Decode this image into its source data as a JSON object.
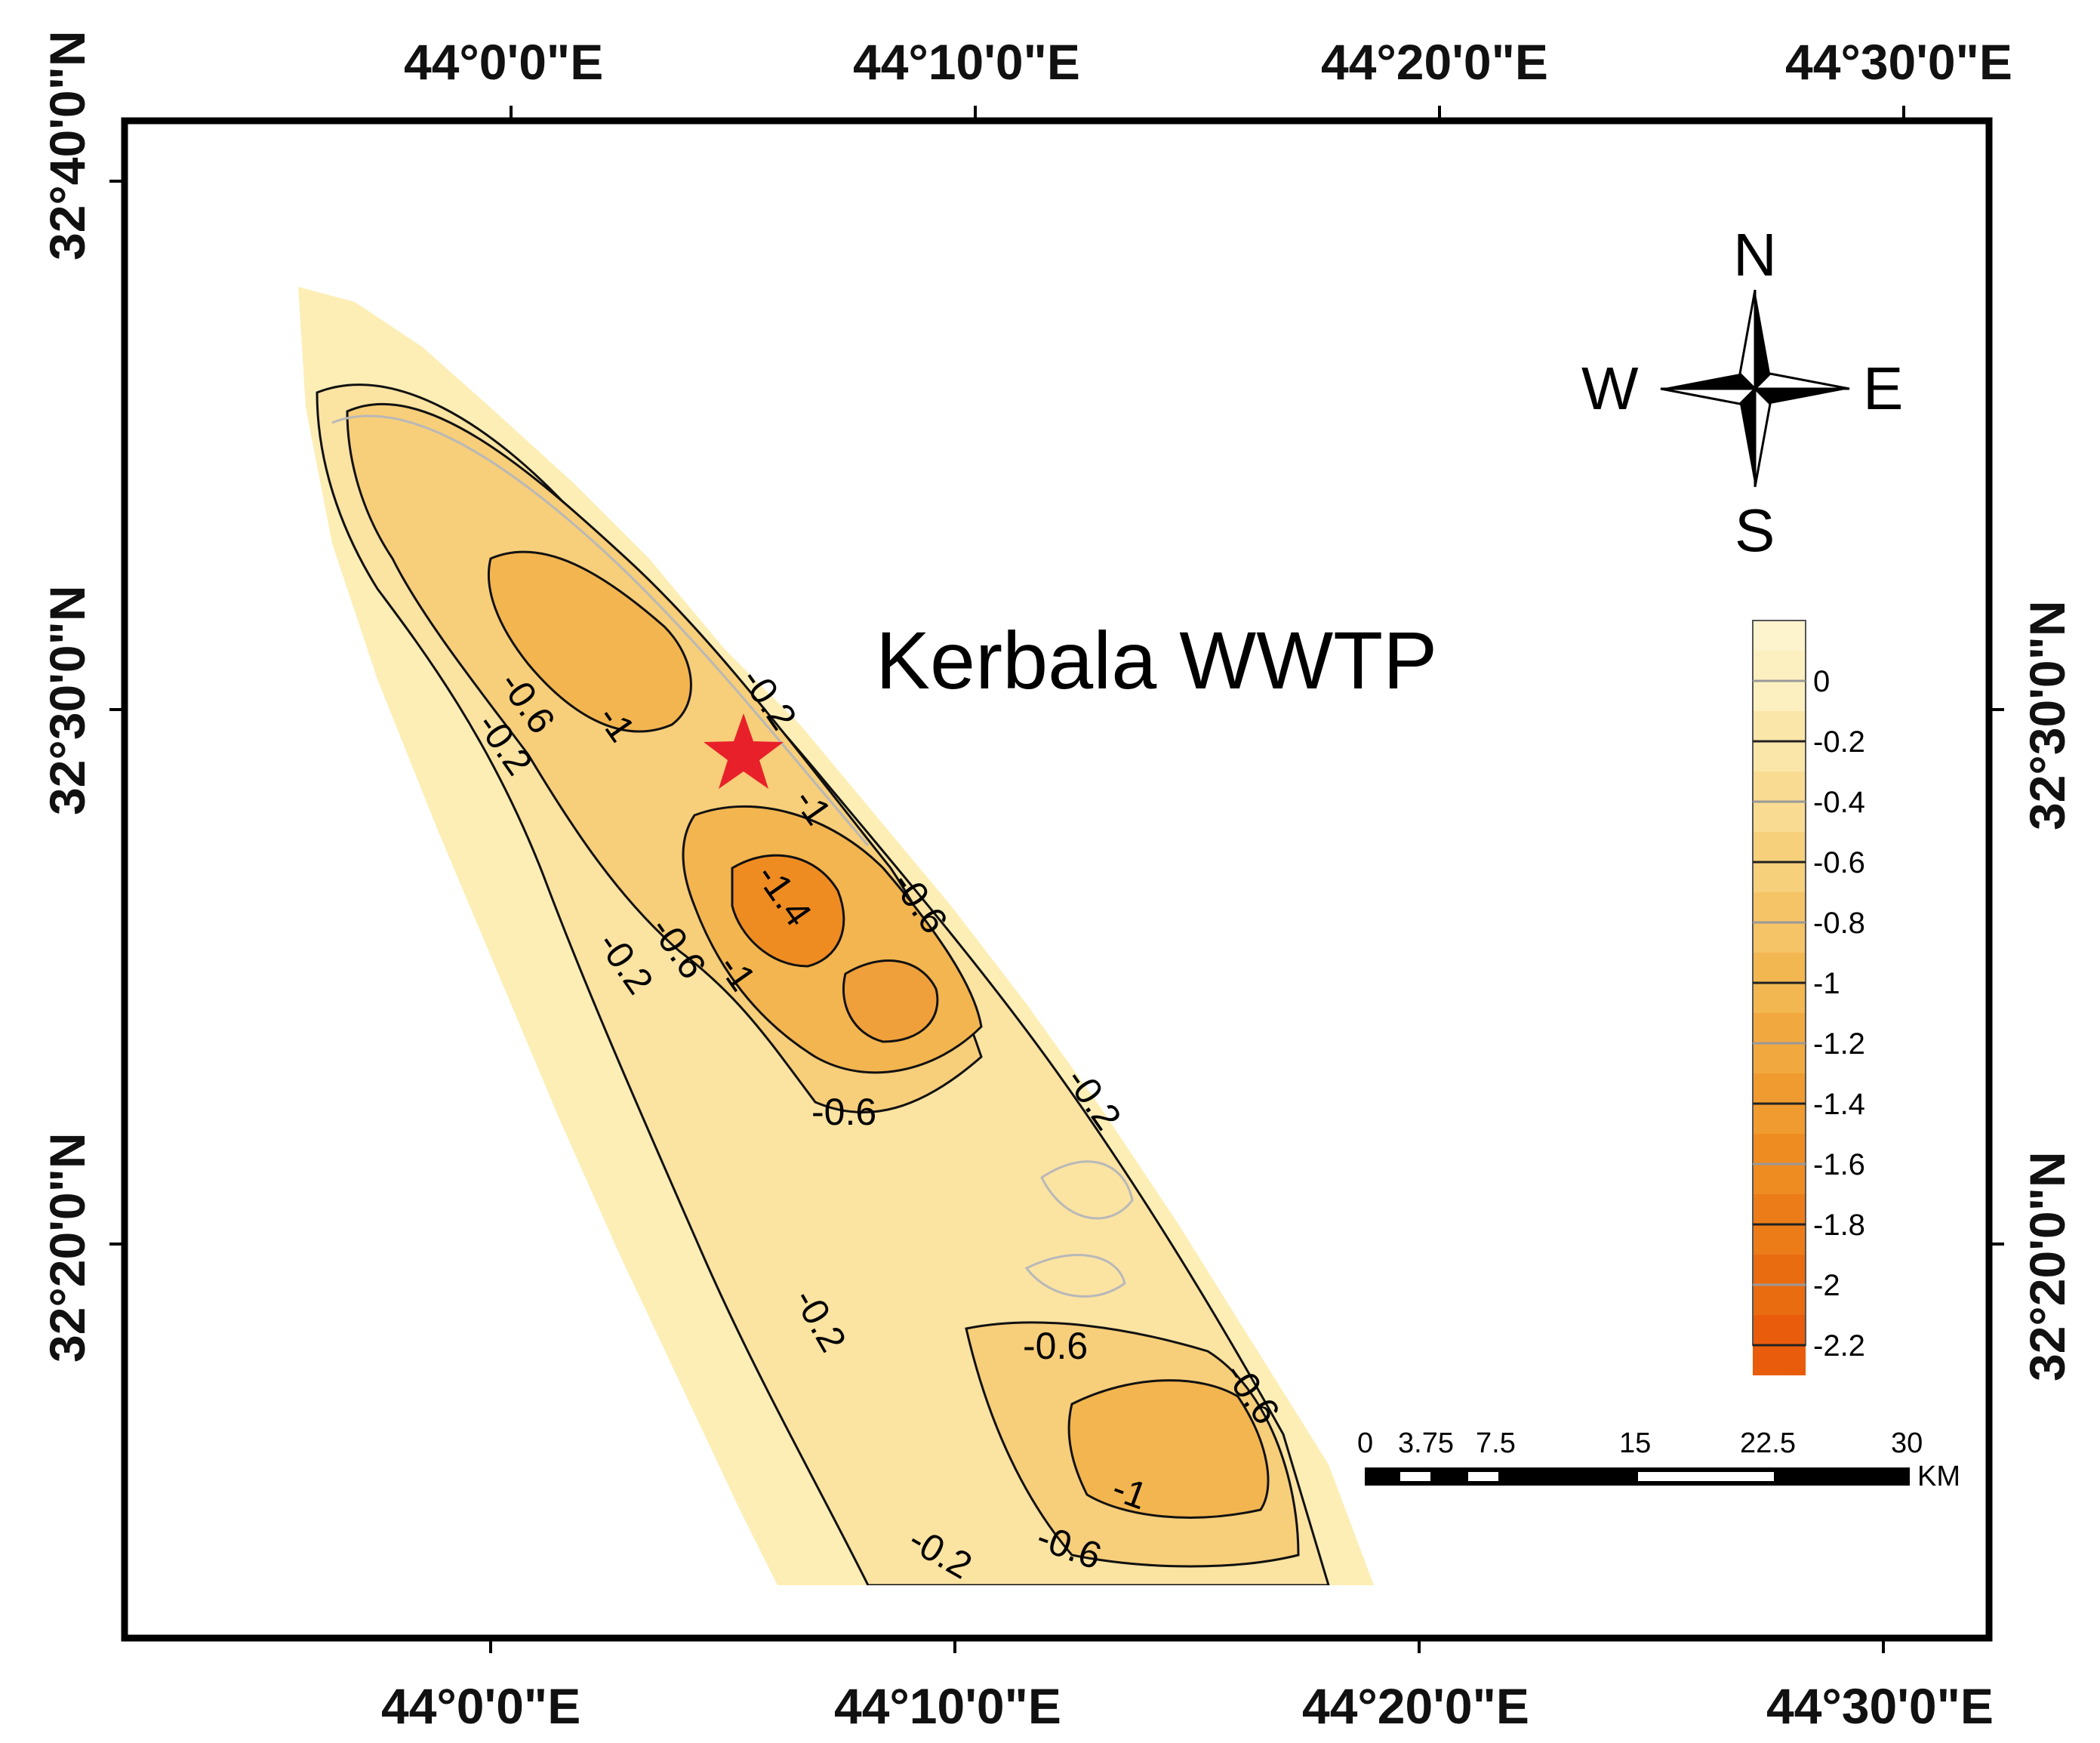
{
  "map": {
    "title": "Kerbala WWTP",
    "marker": "site-star"
  },
  "coordinates": {
    "top": [
      "44°0'0\"E",
      "44°10'0\"E",
      "44°20'0\"E",
      "44°30'0\"E"
    ],
    "bottom": [
      "44°0'0\"E",
      "44°10'0\"E",
      "44°20'0\"E",
      "44°30'0\"E"
    ],
    "left": [
      "32°40'0\"N",
      "32°30'0\"N",
      "32°20'0\"N"
    ],
    "right": [
      "32°30'0\"N",
      "32°20'0\"N"
    ]
  },
  "compass": {
    "n": "N",
    "s": "S",
    "e": "E",
    "w": "W"
  },
  "legend": {
    "labels": [
      "0",
      "-0.2",
      "-0.4",
      "-0.6",
      "-0.8",
      "-1",
      "-1.2",
      "-1.4",
      "-1.6",
      "-1.8",
      "-2",
      "-2.2"
    ],
    "colors": [
      "#fdf0c0",
      "#fbe6a9",
      "#f9dc92",
      "#f7d07c",
      "#f5c466",
      "#f3b752",
      "#f1a93f",
      "#f09b2f",
      "#ee8c22",
      "#ec7c18",
      "#ea6c11",
      "#e85c0c"
    ]
  },
  "scale_bar": {
    "ticks": [
      "0",
      "3.75",
      "7.5",
      "15",
      "22.5",
      "30"
    ],
    "unit": "KM"
  },
  "contour_labels": [
    "-0.6",
    "-1",
    "-0.2",
    "-0.2",
    "-1",
    "-1.4",
    "-0.6",
    "-1",
    "-0.2",
    "-0.6",
    "-0.6",
    "-0.2",
    "-0.6",
    "-0.2",
    "-0.6",
    "-1",
    "-0.6",
    "-0.2"
  ]
}
